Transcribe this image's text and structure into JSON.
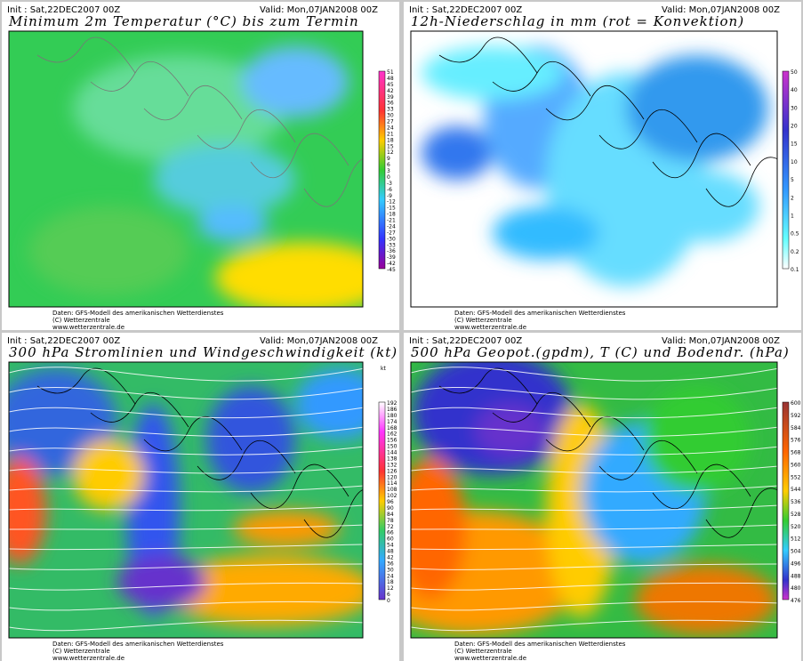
{
  "panels": [
    {
      "init": "Init : Sat,22DEC2007 00Z",
      "valid": "Valid: Mon,07JAN2008 00Z",
      "title": "Minimum 2m Temperatur (°C) bis zum Termin",
      "colorbar": {
        "labels": [
          "51",
          "48",
          "45",
          "42",
          "39",
          "36",
          "33",
          "30",
          "27",
          "24",
          "21",
          "18",
          "15",
          "12",
          "9",
          "6",
          "3",
          "0",
          "-3",
          "-6",
          "-9",
          "-12",
          "-15",
          "-18",
          "-21",
          "-24",
          "-27",
          "-30",
          "-33",
          "-36",
          "-39",
          "-42",
          "-45"
        ]
      },
      "credits": [
        "Daten: GFS-Modell des amerikanischen Wetterdienstes",
        "(C) Wetterzentrale",
        "www.wetterzentrale.de"
      ]
    },
    {
      "init": "Init : Sat,22DEC2007 00Z",
      "valid": "Valid: Mon,07JAN2008 00Z",
      "title": "12h-Niederschlag in mm (rot = Konvektion)",
      "colorbar": {
        "labels": [
          "50",
          "40",
          "30",
          "20",
          "15",
          "10",
          "5",
          "2",
          "1",
          "0.5",
          "0.2",
          "0.1"
        ]
      },
      "credits": [
        "Daten: GFS-Modell des amerikanischen Wetterdienstes",
        "(C) Wetterzentrale",
        "www.wetterzentrale.de"
      ]
    },
    {
      "init": "Init : Sat,22DEC2007 00Z",
      "valid": "Valid: Mon,07JAN2008 00Z",
      "title": "300 hPa Stromlinien und Windgeschwindigkeit (kt)",
      "colorbar": {
        "unit": "kt",
        "labels": [
          "192",
          "186",
          "180",
          "174",
          "168",
          "162",
          "156",
          "150",
          "144",
          "138",
          "132",
          "126",
          "120",
          "114",
          "108",
          "102",
          "96",
          "90",
          "84",
          "78",
          "72",
          "66",
          "60",
          "54",
          "48",
          "42",
          "36",
          "30",
          "24",
          "18",
          "12",
          "6",
          "0"
        ]
      },
      "credits": [
        "Daten: GFS-Modell des amerikanischen Wetterdienstes",
        "(C) Wetterzentrale",
        "www.wetterzentrale.de"
      ]
    },
    {
      "init": "Init : Sat,22DEC2007 00Z",
      "valid": "Valid: Mon,07JAN2008 00Z",
      "title": "500 hPa Geopot.(gpdm), T (C) und Bodendr. (hPa)",
      "colorbar": {
        "labels": [
          "600",
          "592",
          "584",
          "576",
          "568",
          "560",
          "552",
          "544",
          "536",
          "528",
          "520",
          "512",
          "504",
          "496",
          "488",
          "480",
          "476"
        ]
      },
      "credits": [
        "Daten: GFS-Modell des amerikanischen Wetterdienstes",
        "(C) Wetterzentrale",
        "www.wetterzentrale.de"
      ]
    }
  ]
}
